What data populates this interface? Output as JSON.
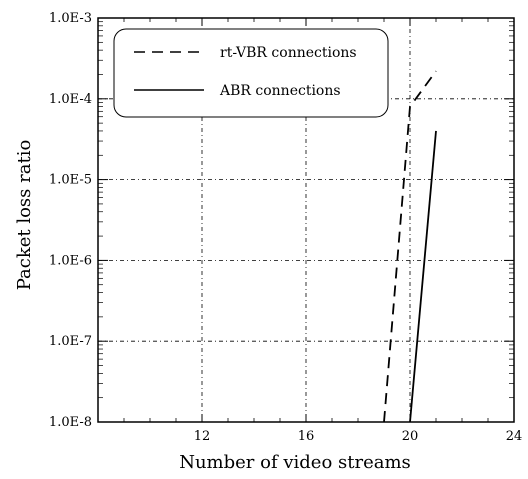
{
  "chart_data": {
    "type": "line",
    "xlabel": "Number of video streams",
    "ylabel": "Packet loss ratio",
    "xlim": [
      8,
      24
    ],
    "ylim": [
      1e-08,
      0.001
    ],
    "yscale": "log",
    "xticks": [
      {
        "value": 12,
        "label": "12"
      },
      {
        "value": 16,
        "label": "16"
      },
      {
        "value": 20,
        "label": "20"
      },
      {
        "value": 24,
        "label": "24"
      }
    ],
    "yticks": [
      {
        "value": 1e-08,
        "label": "1.0E-8"
      },
      {
        "value": 1e-07,
        "label": "1.0E-7"
      },
      {
        "value": 1e-06,
        "label": "1.0E-6"
      },
      {
        "value": 1e-05,
        "label": "1.0E-5"
      },
      {
        "value": 0.0001,
        "label": "1.0E-4"
      },
      {
        "value": 0.001,
        "label": "1.0E-3"
      }
    ],
    "grid": true,
    "legend_position": "top-left",
    "series": [
      {
        "name": "rt-VBR connections",
        "style": "dashed",
        "x": [
          19,
          20,
          21
        ],
        "y": [
          1e-08,
          8e-05,
          0.00022
        ]
      },
      {
        "name": "ABR connections",
        "style": "solid",
        "x": [
          20,
          21
        ],
        "y": [
          1e-08,
          4e-05
        ]
      }
    ]
  }
}
